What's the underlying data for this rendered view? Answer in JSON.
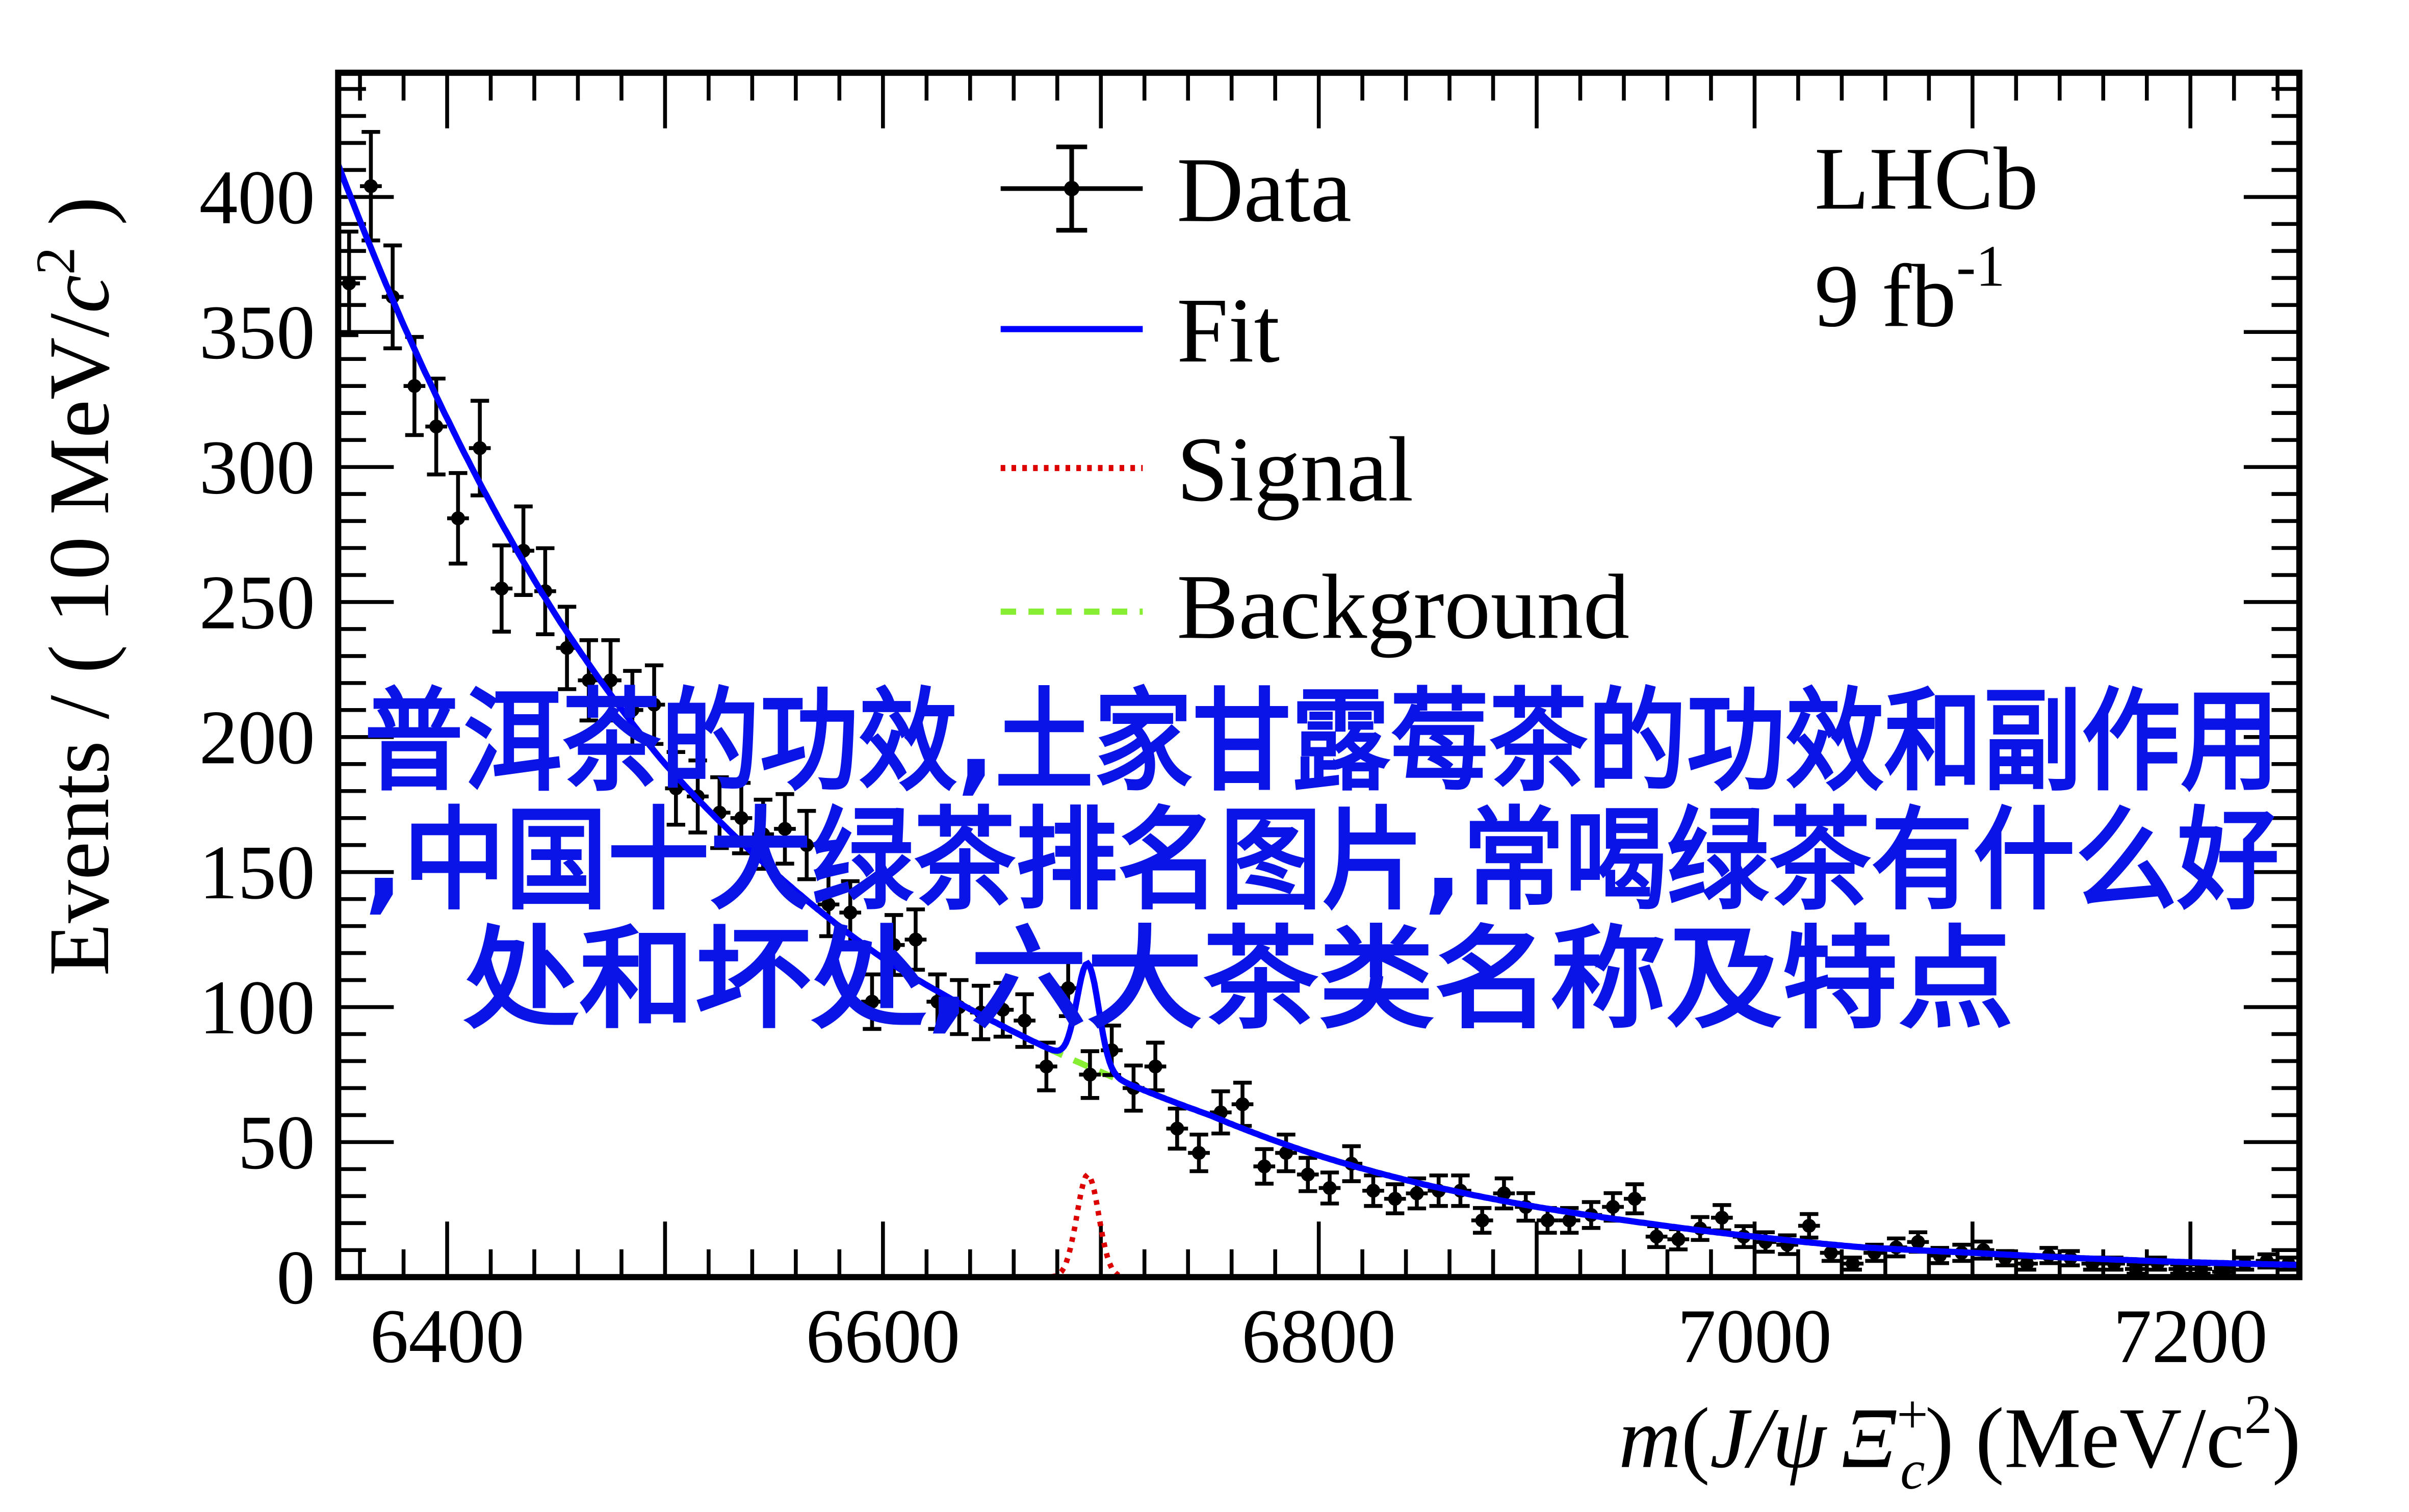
{
  "chart_data": {
    "type": "scatter",
    "title": "",
    "xlabel": "m(J/ψ Ξc+) (MeV/c²)",
    "xlabel_parts": {
      "m": "m",
      "open": "(",
      "jpsi": "J/ψ",
      "xi": "Ξ",
      "sub": "c",
      "sup": "+",
      "close": ")",
      "units": "(MeV/c",
      "units_sup": "2",
      "units_close": ")"
    },
    "ylabel": "Events / ( 10 MeV/c² )",
    "ylabel_parts": {
      "main": "Events / ( 10 MeV/",
      "c": "c",
      "sup": "2",
      "close": " )"
    },
    "xlim": [
      6350,
      7250
    ],
    "ylim": [
      0,
      446
    ],
    "x_ticks": [
      6400,
      6600,
      6800,
      7000,
      7200
    ],
    "y_ticks": [
      0,
      50,
      100,
      150,
      200,
      250,
      300,
      350,
      400
    ],
    "x_tick_labels": [
      "6400",
      "6600",
      "6800",
      "7000",
      "7200"
    ],
    "y_tick_labels": [
      "0",
      "50",
      "100",
      "150",
      "200",
      "250",
      "300",
      "350",
      "400"
    ],
    "bin_width": 10,
    "data": {
      "name": "Data",
      "x": [
        6355,
        6365,
        6375,
        6385,
        6395,
        6405,
        6415,
        6425,
        6435,
        6445,
        6455,
        6465,
        6475,
        6485,
        6495,
        6505,
        6515,
        6525,
        6535,
        6545,
        6555,
        6565,
        6575,
        6585,
        6595,
        6605,
        6615,
        6625,
        6635,
        6645,
        6655,
        6665,
        6675,
        6685,
        6695,
        6705,
        6715,
        6725,
        6735,
        6745,
        6755,
        6765,
        6775,
        6785,
        6795,
        6805,
        6815,
        6825,
        6835,
        6845,
        6855,
        6865,
        6875,
        6885,
        6895,
        6905,
        6915,
        6925,
        6935,
        6945,
        6955,
        6965,
        6975,
        6985,
        6995,
        7005,
        7015,
        7025,
        7035,
        7045,
        7055,
        7065,
        7075,
        7085,
        7095,
        7105,
        7115,
        7125,
        7135,
        7145,
        7155,
        7165,
        7175,
        7185,
        7195,
        7205,
        7215,
        7225,
        7235,
        7245
      ],
      "y": [
        368,
        404,
        363,
        330,
        315,
        281,
        307,
        255,
        269,
        254,
        233,
        221,
        221,
        210,
        212,
        181,
        178,
        172,
        170,
        164,
        166,
        160,
        138,
        135,
        102,
        123,
        125,
        102,
        100,
        98,
        99,
        95,
        78,
        107,
        75,
        84,
        70,
        78,
        55,
        46,
        61,
        64,
        41,
        46,
        38,
        33,
        42,
        32,
        29,
        31,
        32,
        32,
        21,
        31,
        26,
        21,
        21,
        23,
        26,
        29,
        15,
        14,
        18,
        22,
        15,
        13,
        12,
        19,
        9,
        5,
        9,
        11,
        13,
        8,
        9,
        10,
        7,
        5,
        8,
        7,
        5,
        5,
        3,
        5,
        3,
        3,
        2,
        5,
        6,
        5
      ]
    },
    "background": {
      "name": "Background",
      "x": [
        6350,
        6400,
        6450,
        6500,
        6550,
        6600,
        6650,
        6700,
        6750,
        6800,
        6850,
        6900,
        6950,
        7000,
        7050,
        7100,
        7150,
        7200,
        7250
      ],
      "y": [
        412,
        318,
        245,
        190,
        150,
        118,
        95,
        76,
        60,
        45,
        34,
        26,
        20,
        15,
        11,
        9,
        7,
        5.5,
        4.5
      ]
    },
    "signal": {
      "name": "Signal",
      "mean": 6694,
      "sigma": 5,
      "peak": 38
    },
    "fit": {
      "name": "Fit",
      "definition": "background + signal"
    },
    "legend": {
      "placement": "top-center",
      "entries": [
        "Data",
        "Fit",
        "Signal",
        "Background"
      ]
    },
    "experiment": "LHCb",
    "luminosity": {
      "value": "9 fb",
      "sup": "-1"
    },
    "colors": {
      "data": "#000000",
      "fit": "#0000ff",
      "signal": "#dd0000",
      "background": "#88ee33",
      "overlay": "#0a14e6"
    }
  },
  "overlay_text": {
    "line1": "普洱茶的功效,土家甘露莓茶的功效和副作用",
    "line2": ",中国十大绿茶排名图片,常喝绿茶有什么好",
    "line3": "处和坏处,六大茶类名称及特点"
  }
}
